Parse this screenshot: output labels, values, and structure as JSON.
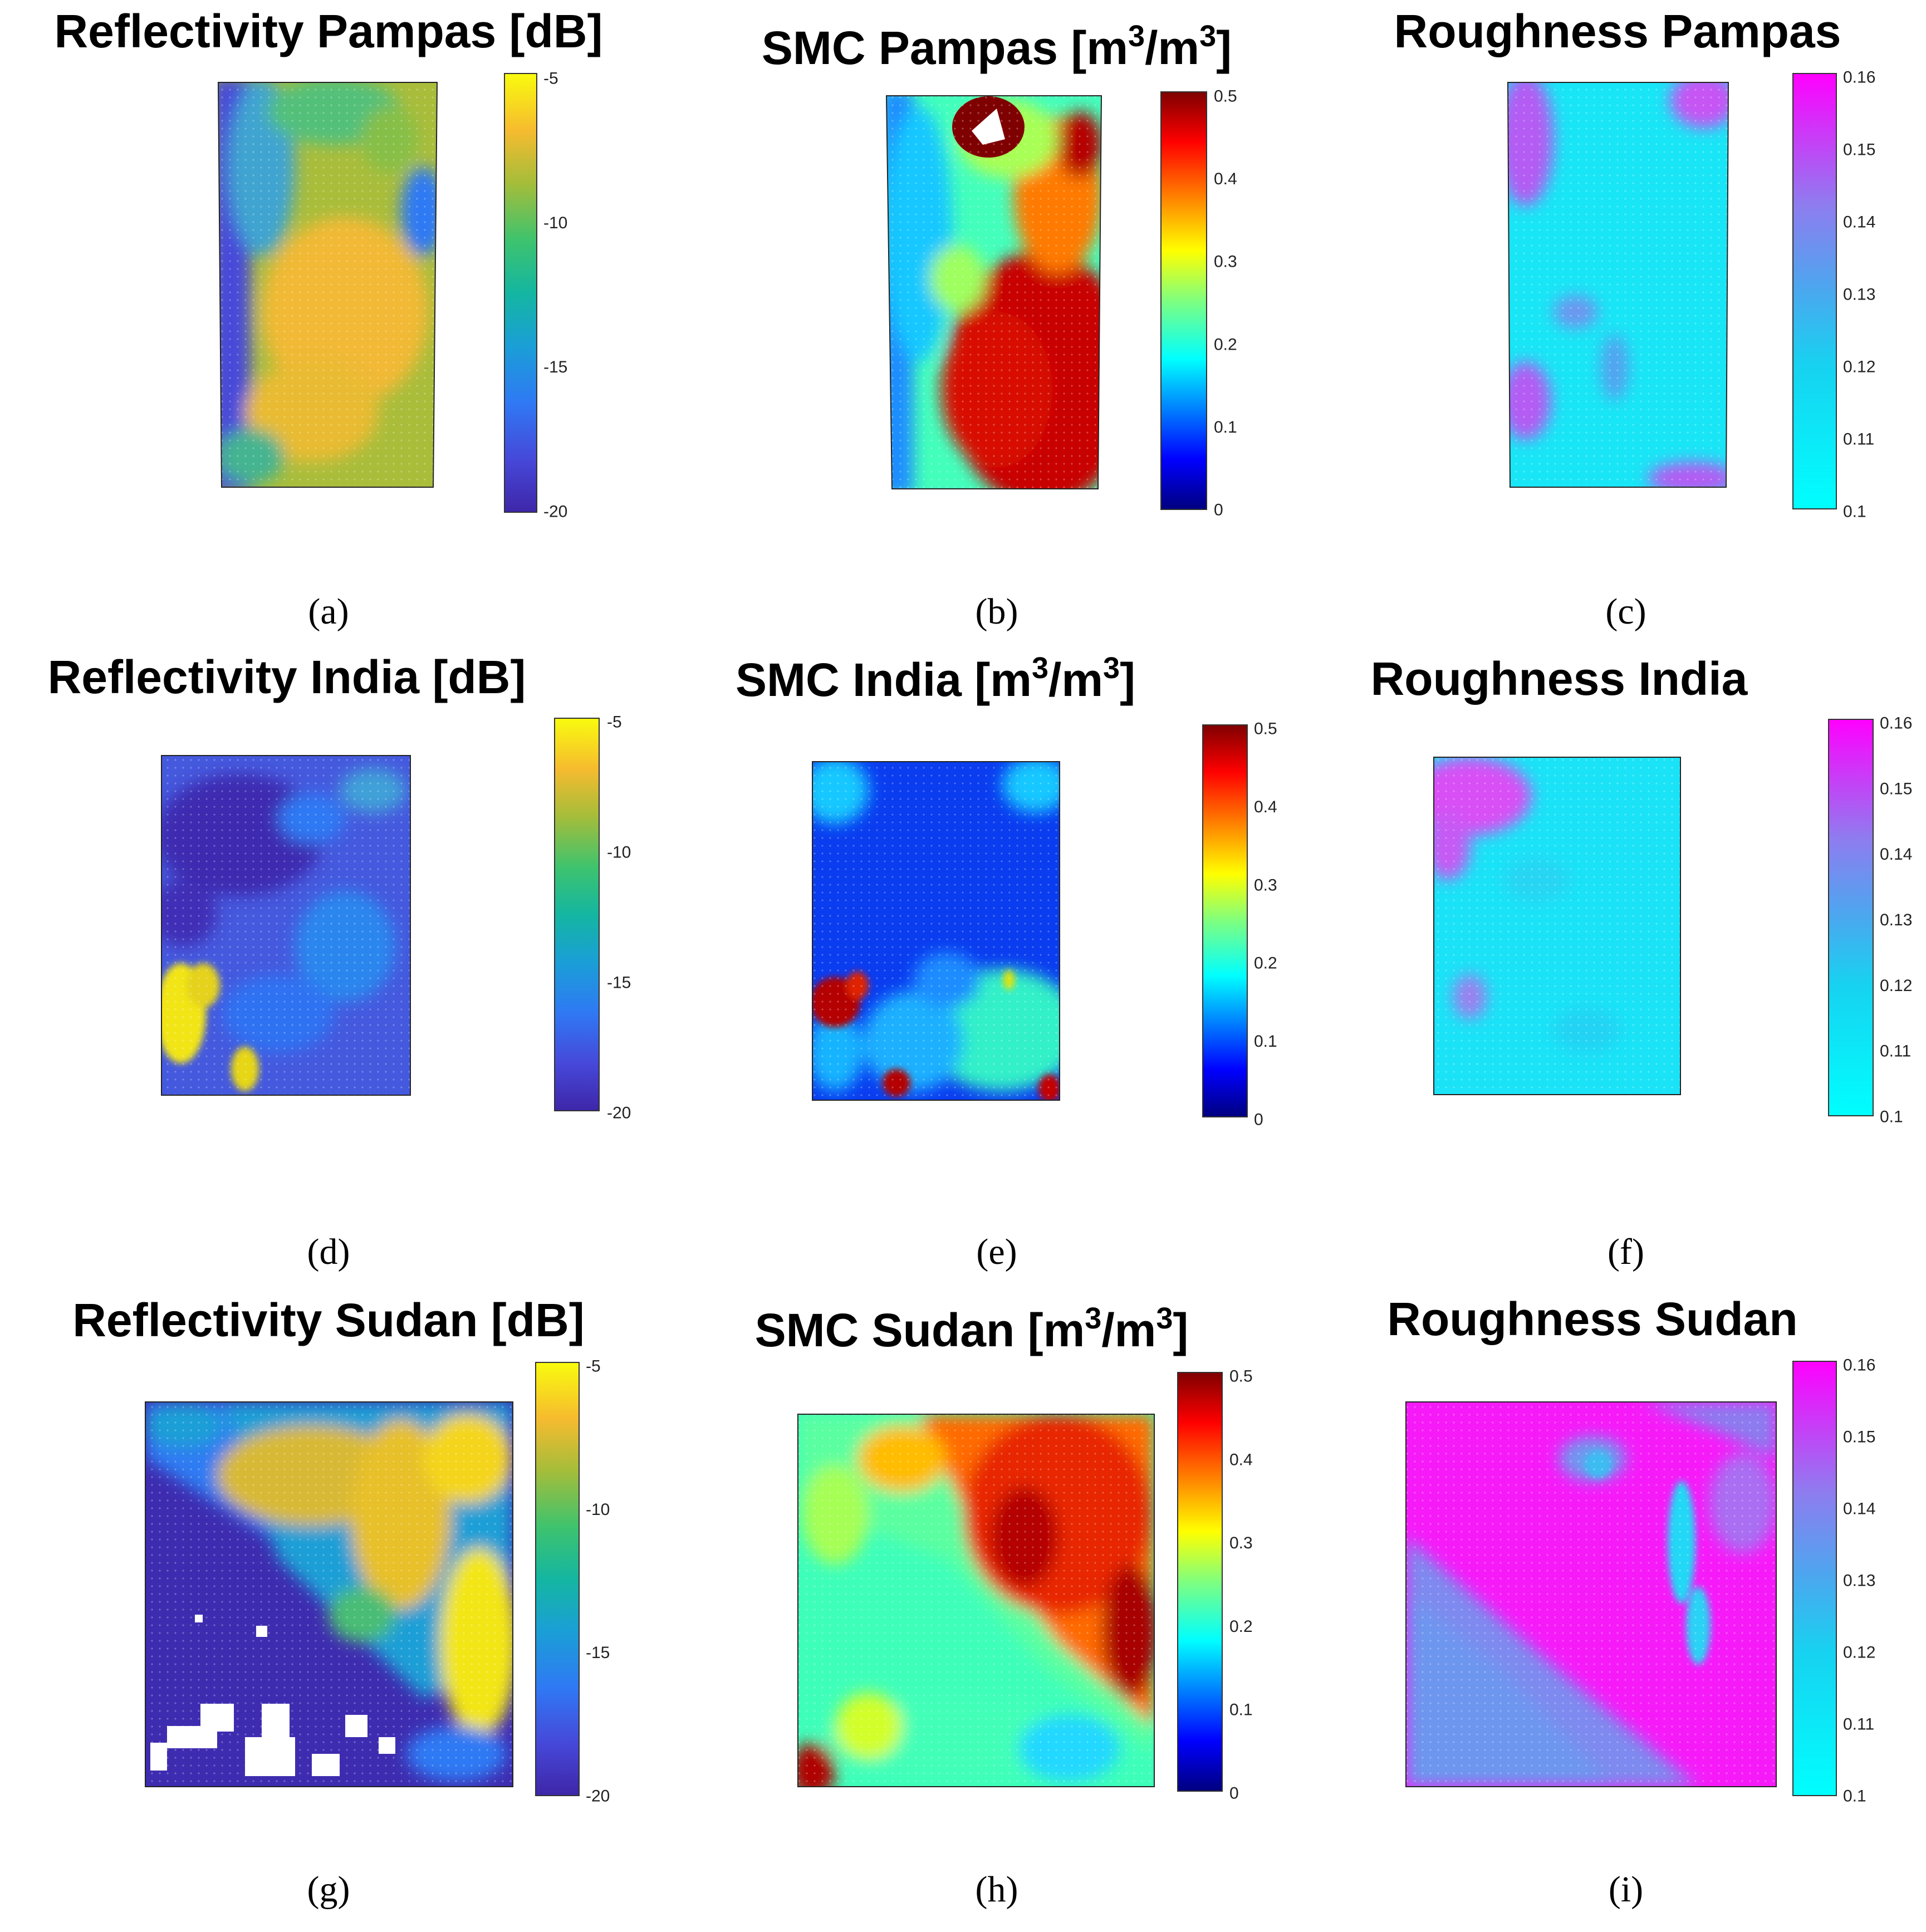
{
  "figure": {
    "captions": [
      "(a)",
      "(b)",
      "(c)",
      "(d)",
      "(e)",
      "(f)",
      "(g)",
      "(h)",
      "(i)"
    ]
  },
  "chart_data": [
    {
      "type": "heatmap",
      "panel": "a",
      "title": "Reflectivity Pampas [dB]",
      "colormap": "parula",
      "clim": [
        -20,
        -5
      ],
      "colorbar_ticks": [
        "-5",
        "-10",
        "-15",
        "-20"
      ],
      "colorbar_tick_values": [
        -5,
        -10,
        -15,
        -20
      ],
      "description_of_field": "mostly -12 to -7 dB (green-yellow); low-reflectivity band (~-18) along left edge"
    },
    {
      "type": "heatmap",
      "panel": "b",
      "title": "SMC Pampas [m³/m³]",
      "title_parts": {
        "main": "SMC Pampas [m",
        "sup1": "3",
        "mid": "/m",
        "sup2": "3",
        "end": "]"
      },
      "colormap": "jet",
      "clim": [
        0,
        0.5
      ],
      "colorbar_ticks": [
        "0.5",
        "0.4",
        "0.3",
        "0.2",
        "0.1",
        "0"
      ],
      "colorbar_tick_values": [
        0.5,
        0.4,
        0.3,
        0.2,
        0.1,
        0
      ]
    },
    {
      "type": "heatmap",
      "panel": "c",
      "title": "Roughness Pampas",
      "colormap": "cool",
      "clim": [
        0.1,
        0.16
      ],
      "colorbar_ticks": [
        "0.16",
        "0.15",
        "0.14",
        "0.13",
        "0.12",
        "0.11",
        "0.1"
      ],
      "colorbar_tick_values": [
        0.16,
        0.15,
        0.14,
        0.13,
        0.12,
        0.11,
        0.1
      ]
    },
    {
      "type": "heatmap",
      "panel": "d",
      "title": "Reflectivity India [dB]",
      "colormap": "parula",
      "clim": [
        -20,
        -5
      ],
      "colorbar_ticks": [
        "-5",
        "-10",
        "-15",
        "-20"
      ],
      "colorbar_tick_values": [
        -5,
        -10,
        -15,
        -20
      ]
    },
    {
      "type": "heatmap",
      "panel": "e",
      "title": "SMC India [m³/m³]",
      "title_parts": {
        "main": "SMC India [m",
        "sup1": "3",
        "mid": "/m",
        "sup2": "3",
        "end": "]"
      },
      "colormap": "jet",
      "clim": [
        0,
        0.5
      ],
      "colorbar_ticks": [
        "0.5",
        "0.4",
        "0.3",
        "0.2",
        "0.1",
        "0"
      ],
      "colorbar_tick_values": [
        0.5,
        0.4,
        0.3,
        0.2,
        0.1,
        0
      ]
    },
    {
      "type": "heatmap",
      "panel": "f",
      "title": "Roughness India",
      "colormap": "cool",
      "clim": [
        0.1,
        0.16
      ],
      "colorbar_ticks": [
        "0.16",
        "0.15",
        "0.14",
        "0.13",
        "0.12",
        "0.11",
        "0.1"
      ],
      "colorbar_tick_values": [
        0.16,
        0.15,
        0.14,
        0.13,
        0.12,
        0.11,
        0.1
      ]
    },
    {
      "type": "heatmap",
      "panel": "g",
      "title": "Reflectivity Sudan [dB]",
      "colormap": "parula",
      "clim": [
        -20,
        -5
      ],
      "colorbar_ticks": [
        "-5",
        "-10",
        "-15",
        "-20"
      ],
      "colorbar_tick_values": [
        -5,
        -10,
        -15,
        -20
      ]
    },
    {
      "type": "heatmap",
      "panel": "h",
      "title": "SMC Sudan [m³/m³]",
      "title_parts": {
        "main": "SMC Sudan [m",
        "sup1": "3",
        "mid": "/m",
        "sup2": "3",
        "end": "]"
      },
      "colormap": "jet",
      "clim": [
        0,
        0.5
      ],
      "colorbar_ticks": [
        "0.5",
        "0.4",
        "0.3",
        "0.2",
        "0.1",
        "0"
      ],
      "colorbar_tick_values": [
        0.5,
        0.4,
        0.3,
        0.2,
        0.1,
        0
      ]
    },
    {
      "type": "heatmap",
      "panel": "i",
      "title": "Roughness Sudan",
      "colormap": "cool",
      "clim": [
        0.1,
        0.16
      ],
      "colorbar_ticks": [
        "0.16",
        "0.15",
        "0.14",
        "0.13",
        "0.12",
        "0.11",
        "0.1"
      ],
      "colorbar_tick_values": [
        0.16,
        0.15,
        0.14,
        0.13,
        0.12,
        0.11,
        0.1
      ]
    }
  ]
}
